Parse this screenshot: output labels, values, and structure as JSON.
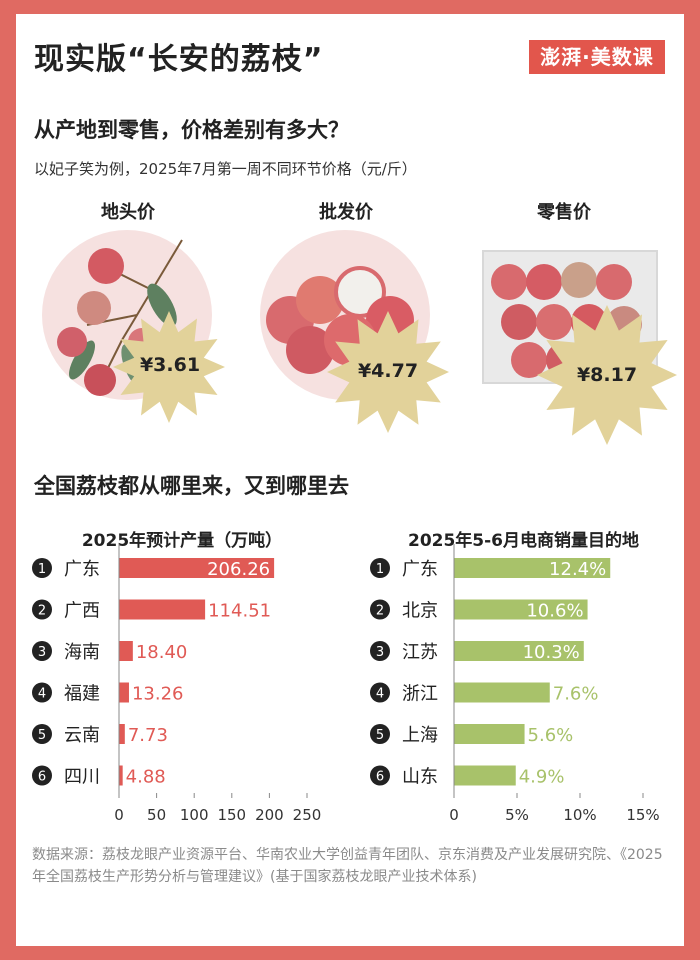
{
  "title": "现实版“长安的荔枝”",
  "logo": "澎湃·美数课",
  "section1": {
    "heading": "从产地到零售，价格差别有多大？",
    "note": "以妃子笑为例，2025年7月第一周不同环节价格（元/斤）",
    "prices": [
      {
        "label": "地头价",
        "value": "¥3.61"
      },
      {
        "label": "批发价",
        "value": "¥4.77"
      },
      {
        "label": "零售价",
        "value": "¥8.17"
      }
    ]
  },
  "section2": {
    "heading": "全国荔枝都从哪里来，又到哪里去"
  },
  "colors": {
    "red": "#e05a55",
    "green": "#a8c26a",
    "star": "#e2d29a",
    "frame": "#e06a62"
  },
  "chart_data": [
    {
      "type": "bar",
      "orientation": "horizontal",
      "title": "2025年预计产量（万吨）",
      "categories": [
        "广东",
        "广西",
        "海南",
        "福建",
        "云南",
        "四川"
      ],
      "ranks": [
        "1",
        "2",
        "3",
        "4",
        "5",
        "6"
      ],
      "values": [
        206.26,
        114.51,
        18.4,
        13.26,
        7.73,
        4.88
      ],
      "value_labels": [
        "206.26",
        "114.51",
        "18.40",
        "13.26",
        "7.73",
        "4.88"
      ],
      "xlim": [
        0,
        250
      ],
      "xticks": [
        "0",
        "50",
        "100",
        "150",
        "200",
        "250"
      ],
      "color": "#e05a55"
    },
    {
      "type": "bar",
      "orientation": "horizontal",
      "title": "2025年5-6月电商销量目的地",
      "categories": [
        "广东",
        "北京",
        "江苏",
        "浙江",
        "上海",
        "山东"
      ],
      "ranks": [
        "1",
        "2",
        "3",
        "4",
        "5",
        "6"
      ],
      "values": [
        12.4,
        10.6,
        10.3,
        7.6,
        5.6,
        4.9
      ],
      "value_labels": [
        "12.4%",
        "10.6%",
        "10.3%",
        "7.6%",
        "5.6%",
        "4.9%"
      ],
      "xlim": [
        0,
        15
      ],
      "xticks": [
        "0",
        "5%",
        "10%",
        "15%"
      ],
      "color": "#a8c26a"
    }
  ],
  "source": "数据来源：荔枝龙眼产业资源平台、华南农业大学创益青年团队、京东消费及产业发展研究院、《2025年全国荔枝生产形势分析与管理建议》(基于国家荔枝龙眼产业技术体系)"
}
